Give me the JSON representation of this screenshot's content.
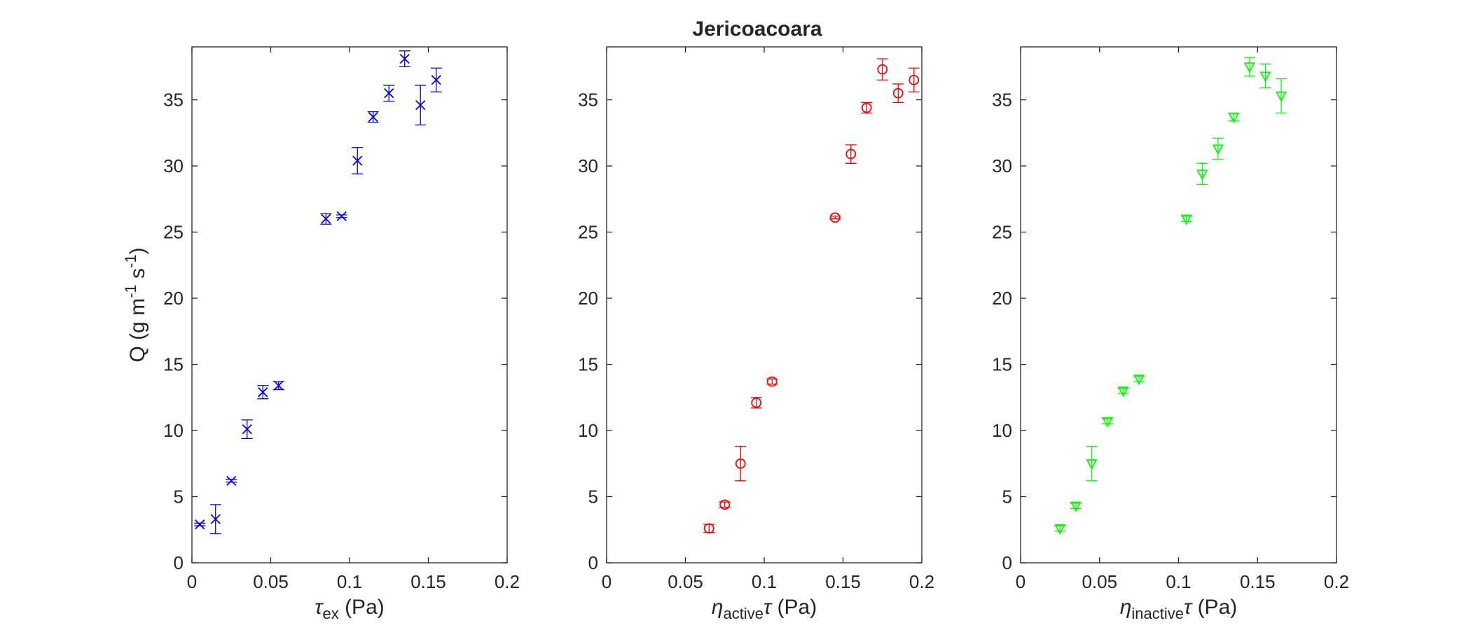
{
  "title": "Jericoacoara",
  "chart_data": [
    {
      "type": "scatter",
      "xlabel": {
        "main": "τ",
        "sub": "ex",
        "unit": " (Pa)"
      },
      "ylabel": "Q (g m-1 s-1)",
      "xlim": [
        0,
        0.2
      ],
      "ylim": [
        0,
        39
      ],
      "xticks": [
        "0",
        "0.05",
        "0.1",
        "0.15",
        "0.2"
      ],
      "xtick_values": [
        0,
        0.05,
        0.1,
        0.15,
        0.2
      ],
      "yticks": [
        "0",
        "5",
        "10",
        "15",
        "20",
        "25",
        "30",
        "35"
      ],
      "ytick_values": [
        0,
        5,
        10,
        15,
        20,
        25,
        30,
        35
      ],
      "grid": false,
      "series": [
        {
          "marker": "x",
          "color": "#0000ff",
          "points": [
            {
              "x": 0.005,
              "y": 2.9,
              "err": 0.1
            },
            {
              "x": 0.015,
              "y": 3.3,
              "err": 1.1
            },
            {
              "x": 0.025,
              "y": 6.2,
              "err": 0.1
            },
            {
              "x": 0.035,
              "y": 10.1,
              "err": 0.7
            },
            {
              "x": 0.045,
              "y": 12.9,
              "err": 0.5
            },
            {
              "x": 0.055,
              "y": 13.4,
              "err": 0.3
            },
            {
              "x": 0.085,
              "y": 26.0,
              "err": 0.4
            },
            {
              "x": 0.095,
              "y": 26.2,
              "err": 0.1
            },
            {
              "x": 0.105,
              "y": 30.4,
              "err": 1.0
            },
            {
              "x": 0.115,
              "y": 33.7,
              "err": 0.4
            },
            {
              "x": 0.125,
              "y": 35.5,
              "err": 0.6
            },
            {
              "x": 0.135,
              "y": 38.1,
              "err": 0.6
            },
            {
              "x": 0.145,
              "y": 34.6,
              "err": 1.5
            },
            {
              "x": 0.155,
              "y": 36.5,
              "err": 0.9
            }
          ]
        }
      ]
    },
    {
      "type": "scatter",
      "xlabel": {
        "main": "η",
        "sub": "active",
        "after": "τ",
        "unit": " (Pa)"
      },
      "xlim": [
        0,
        0.2
      ],
      "ylim": [
        0,
        39
      ],
      "xticks": [
        "0",
        "0.05",
        "0.1",
        "0.15",
        "0.2"
      ],
      "xtick_values": [
        0,
        0.05,
        0.1,
        0.15,
        0.2
      ],
      "yticks": [
        "0",
        "5",
        "10",
        "15",
        "20",
        "25",
        "30",
        "35"
      ],
      "ytick_values": [
        0,
        5,
        10,
        15,
        20,
        25,
        30,
        35
      ],
      "grid": false,
      "series": [
        {
          "marker": "circle",
          "color": "#ff0000",
          "points": [
            {
              "x": 0.065,
              "y": 2.6,
              "err": 0.3
            },
            {
              "x": 0.075,
              "y": 4.4,
              "err": 0.2
            },
            {
              "x": 0.085,
              "y": 7.5,
              "err": 1.3
            },
            {
              "x": 0.095,
              "y": 12.1,
              "err": 0.4
            },
            {
              "x": 0.105,
              "y": 13.7,
              "err": 0.2
            },
            {
              "x": 0.145,
              "y": 26.1,
              "err": 0.1
            },
            {
              "x": 0.155,
              "y": 30.9,
              "err": 0.7
            },
            {
              "x": 0.165,
              "y": 34.4,
              "err": 0.4
            },
            {
              "x": 0.175,
              "y": 37.3,
              "err": 0.8
            },
            {
              "x": 0.185,
              "y": 35.5,
              "err": 0.7
            },
            {
              "x": 0.195,
              "y": 36.5,
              "err": 0.9
            }
          ]
        }
      ]
    },
    {
      "type": "scatter",
      "xlabel": {
        "main": "η",
        "sub": "inactive",
        "after": "τ",
        "unit": " (Pa)"
      },
      "xlim": [
        0,
        0.2
      ],
      "ylim": [
        0,
        39
      ],
      "xticks": [
        "0",
        "0.05",
        "0.1",
        "0.15",
        "0.2"
      ],
      "xtick_values": [
        0,
        0.05,
        0.1,
        0.15,
        0.2
      ],
      "yticks": [
        "0",
        "5",
        "10",
        "15",
        "20",
        "25",
        "30",
        "35"
      ],
      "ytick_values": [
        0,
        5,
        10,
        15,
        20,
        25,
        30,
        35
      ],
      "grid": false,
      "series": [
        {
          "marker": "triangle-down",
          "color": "#00ff00",
          "points": [
            {
              "x": 0.025,
              "y": 2.6,
              "err": 0.2
            },
            {
              "x": 0.035,
              "y": 4.3,
              "err": 0.2
            },
            {
              "x": 0.045,
              "y": 7.5,
              "err": 1.3
            },
            {
              "x": 0.055,
              "y": 10.7,
              "err": 0.2
            },
            {
              "x": 0.065,
              "y": 13.0,
              "err": 0.2
            },
            {
              "x": 0.075,
              "y": 13.9,
              "err": 0.2
            },
            {
              "x": 0.105,
              "y": 26.0,
              "err": 0.2
            },
            {
              "x": 0.115,
              "y": 29.4,
              "err": 0.8
            },
            {
              "x": 0.125,
              "y": 31.3,
              "err": 0.8
            },
            {
              "x": 0.135,
              "y": 33.7,
              "err": 0.3
            },
            {
              "x": 0.145,
              "y": 37.5,
              "err": 0.7
            },
            {
              "x": 0.155,
              "y": 36.8,
              "err": 0.9
            },
            {
              "x": 0.165,
              "y": 35.3,
              "err": 1.3
            }
          ]
        }
      ]
    }
  ]
}
